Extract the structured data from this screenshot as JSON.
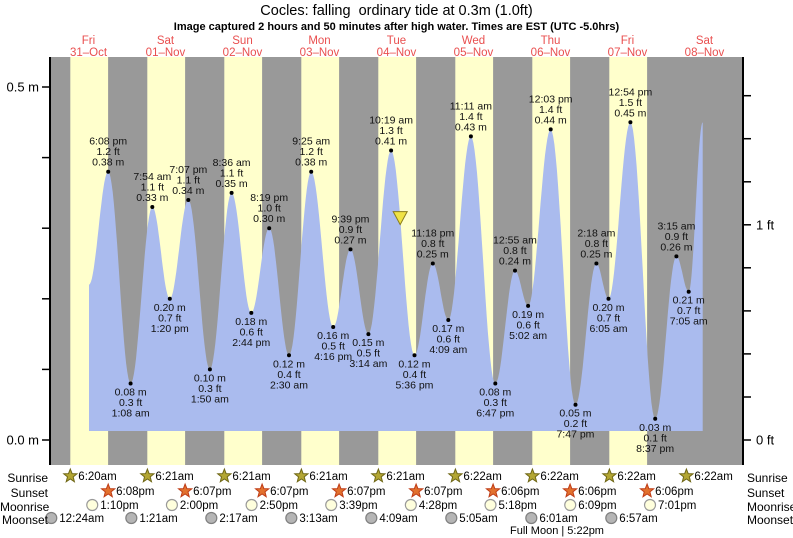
{
  "title": "Cocles: falling  ordinary tide at 0.3m (1.0ft)",
  "subtitle": "Image captured 2 hours and 50 minutes after high water. Times are EST (UTC -5.0hrs)",
  "colors": {
    "day_band": "#ffffcc",
    "night_band": "#999999",
    "tide_fill": "#aabbee",
    "date_label": "#e94f4f",
    "axis": "#000000",
    "point_dot": "#000000",
    "current_marker_fill": "#f0e344",
    "current_marker_stroke": "#8a7d1a",
    "sunrise_star_fill": "#b3a633",
    "sunrise_star_stroke": "#6f6716",
    "sunset_star_fill": "#e2712e",
    "sunset_star_stroke": "#bf3c16",
    "moonrise_circle_fill": "#ffffdd",
    "moonrise_circle_stroke": "#999999",
    "moonset_circle_fill": "#b5b5b5",
    "moonset_circle_stroke": "#7f7f7f"
  },
  "row_labels": {
    "sunrise": "Sunrise",
    "sunset": "Sunset",
    "moonrise": "Moonrise",
    "moonset": "Moonset"
  },
  "chart_data": {
    "type": "area",
    "title": "Cocles: falling  ordinary tide at 0.3m (1.0ft)",
    "ylabel_left_unit": "m",
    "ylabel_right_unit": "ft",
    "ylim_m": [
      0.0,
      0.54
    ],
    "grid": false,
    "x_days": [
      {
        "name": "Fri",
        "date": "31–Oct"
      },
      {
        "name": "Sat",
        "date": "01–Nov"
      },
      {
        "name": "Sun",
        "date": "02–Nov"
      },
      {
        "name": "Mon",
        "date": "03–Nov"
      },
      {
        "name": "Tue",
        "date": "04–Nov"
      },
      {
        "name": "Wed",
        "date": "05–Nov"
      },
      {
        "name": "Thu",
        "date": "06–Nov"
      },
      {
        "name": "Fri",
        "date": "07–Nov"
      },
      {
        "name": "Sat",
        "date": "08–Nov"
      }
    ],
    "y_axis_left": {
      "ticks_m": [
        0,
        0.1,
        0.2,
        0.3,
        0.4,
        0.5
      ],
      "labels": [
        {
          "value_m": 0.5,
          "text": "0.5 m"
        },
        {
          "value_m": 0.0,
          "text": "0.0 m"
        }
      ]
    },
    "y_axis_right": {
      "ticks_ft": [
        0,
        0.2,
        0.4,
        0.6,
        0.8,
        1.0,
        1.2,
        1.4,
        1.6
      ],
      "labels": [
        {
          "value_ft": 1.0,
          "text": "1 ft"
        },
        {
          "value_ft": 0.0,
          "text": "0 ft"
        }
      ]
    },
    "tide_points": [
      {
        "type": "high",
        "day": 0,
        "hour": 18.13,
        "time": "6:08 pm",
        "ft": "1.2 ft",
        "m": "0.38 m",
        "value_m": 0.38
      },
      {
        "type": "low",
        "day": 1,
        "hour": 1.13,
        "time": "1:08 am",
        "ft": "0.3 ft",
        "m": "0.08 m",
        "value_m": 0.08
      },
      {
        "type": "high",
        "day": 1,
        "hour": 7.9,
        "time": "7:54 am",
        "ft": "1.1 ft",
        "m": "0.33 m",
        "value_m": 0.33
      },
      {
        "type": "low",
        "day": 1,
        "hour": 13.33,
        "time": "1:20 pm",
        "ft": "0.7 ft",
        "m": "0.20 m",
        "value_m": 0.2
      },
      {
        "type": "high",
        "day": 1,
        "hour": 19.12,
        "time": "7:07 pm",
        "ft": "1.1 ft",
        "m": "0.34 m",
        "value_m": 0.34
      },
      {
        "type": "low",
        "day": 2,
        "hour": 1.83,
        "time": "1:50 am",
        "ft": "0.3 ft",
        "m": "0.10 m",
        "value_m": 0.1
      },
      {
        "type": "high",
        "day": 2,
        "hour": 8.6,
        "time": "8:36 am",
        "ft": "1.1 ft",
        "m": "0.35 m",
        "value_m": 0.35
      },
      {
        "type": "low",
        "day": 2,
        "hour": 14.73,
        "time": "2:44 pm",
        "ft": "0.6 ft",
        "m": "0.18 m",
        "value_m": 0.18
      },
      {
        "type": "high",
        "day": 2,
        "hour": 20.32,
        "time": "8:19 pm",
        "ft": "1.0 ft",
        "m": "0.30 m",
        "value_m": 0.3
      },
      {
        "type": "low",
        "day": 3,
        "hour": 2.5,
        "time": "2:30 am",
        "ft": "0.4 ft",
        "m": "0.12 m",
        "value_m": 0.12
      },
      {
        "type": "high",
        "day": 3,
        "hour": 9.42,
        "time": "9:25 am",
        "ft": "1.2 ft",
        "m": "0.38 m",
        "value_m": 0.38
      },
      {
        "type": "low",
        "day": 3,
        "hour": 16.27,
        "time": "4:16 pm",
        "ft": "0.5 ft",
        "m": "0.16 m",
        "value_m": 0.16
      },
      {
        "type": "high",
        "day": 3,
        "hour": 21.65,
        "time": "9:39 pm",
        "ft": "0.9 ft",
        "m": "0.27 m",
        "value_m": 0.27
      },
      {
        "type": "low",
        "day": 4,
        "hour": 3.23,
        "time": "3:14 am",
        "ft": "0.5 ft",
        "m": "0.15 m",
        "value_m": 0.15
      },
      {
        "type": "high",
        "day": 4,
        "hour": 10.32,
        "time": "10:19 am",
        "ft": "1.3 ft",
        "m": "0.41 m",
        "value_m": 0.41
      },
      {
        "type": "low",
        "day": 4,
        "hour": 17.6,
        "time": "5:36 pm",
        "ft": "0.4 ft",
        "m": "0.12 m",
        "value_m": 0.12
      },
      {
        "type": "high",
        "day": 4,
        "hour": 23.3,
        "time": "11:18 pm",
        "ft": "0.8 ft",
        "m": "0.25 m",
        "value_m": 0.25
      },
      {
        "type": "low",
        "day": 5,
        "hour": 4.15,
        "time": "4:09 am",
        "ft": "0.6 ft",
        "m": "0.17 m",
        "value_m": 0.17
      },
      {
        "type": "high",
        "day": 5,
        "hour": 11.18,
        "time": "11:11 am",
        "ft": "1.4 ft",
        "m": "0.43 m",
        "value_m": 0.43
      },
      {
        "type": "low",
        "day": 5,
        "hour": 18.78,
        "time": "6:47 pm",
        "ft": "0.3 ft",
        "m": "0.08 m",
        "value_m": 0.08
      },
      {
        "type": "high",
        "day": 6,
        "hour": 0.92,
        "time": "12:55 am",
        "ft": "0.8 ft",
        "m": "0.24 m",
        "value_m": 0.24
      },
      {
        "type": "low",
        "day": 6,
        "hour": 5.03,
        "time": "5:02 am",
        "ft": "0.6 ft",
        "m": "0.19 m",
        "value_m": 0.19
      },
      {
        "type": "high",
        "day": 6,
        "hour": 12.05,
        "time": "12:03 pm",
        "ft": "1.4 ft",
        "m": "0.44 m",
        "value_m": 0.44
      },
      {
        "type": "low",
        "day": 6,
        "hour": 19.78,
        "time": "7:47 pm",
        "ft": "0.2 ft",
        "m": "0.05 m",
        "value_m": 0.05
      },
      {
        "type": "high",
        "day": 7,
        "hour": 2.3,
        "time": "2:18 am",
        "ft": "0.8 ft",
        "m": "0.25 m",
        "value_m": 0.25
      },
      {
        "type": "low",
        "day": 7,
        "hour": 6.08,
        "time": "6:05 am",
        "ft": "0.7 ft",
        "m": "0.20 m",
        "value_m": 0.2
      },
      {
        "type": "high",
        "day": 7,
        "hour": 12.9,
        "time": "12:54 pm",
        "ft": "1.5 ft",
        "m": "0.45 m",
        "value_m": 0.45
      },
      {
        "type": "low",
        "day": 7,
        "hour": 20.62,
        "time": "8:37 pm",
        "ft": "0.1 ft",
        "m": "0.03 m",
        "value_m": 0.03
      },
      {
        "type": "high",
        "day": 8,
        "hour": 3.25,
        "time": "3:15 am",
        "ft": "0.9 ft",
        "m": "0.26 m",
        "value_m": 0.26
      },
      {
        "type": "low",
        "day": 8,
        "hour": 7.08,
        "time": "7:05 am",
        "ft": "0.7 ft",
        "m": "0.21 m",
        "value_m": 0.21
      }
    ],
    "curve_edges": {
      "start": {
        "day": 0,
        "hour": 12.15,
        "value_m": 0.22
      },
      "end": {
        "day": 8,
        "hour": 11.45,
        "value_m": 0.45
      }
    },
    "current_time_marker": {
      "day": 4,
      "hour": 13.15,
      "value_m": 0.315
    },
    "daylight": {
      "sunrise_hour": 6.33,
      "sunset_hour": 18.12
    },
    "astro_rows": [
      {
        "key": "sunrise",
        "label": "Sunrise",
        "icon": "sunrise-star-icon",
        "entries": [
          {
            "day": 0,
            "hour": 6.33,
            "time": "6:20am"
          },
          {
            "day": 1,
            "hour": 6.35,
            "time": "6:21am"
          },
          {
            "day": 2,
            "hour": 6.35,
            "time": "6:21am"
          },
          {
            "day": 3,
            "hour": 6.35,
            "time": "6:21am"
          },
          {
            "day": 4,
            "hour": 6.35,
            "time": "6:21am"
          },
          {
            "day": 5,
            "hour": 6.37,
            "time": "6:22am"
          },
          {
            "day": 6,
            "hour": 6.37,
            "time": "6:22am"
          },
          {
            "day": 7,
            "hour": 6.37,
            "time": "6:22am"
          },
          {
            "day": 8,
            "hour": 6.37,
            "time": "6:22am"
          }
        ]
      },
      {
        "key": "sunset",
        "label": "Sunset",
        "icon": "sunset-star-icon",
        "entries": [
          {
            "day": 0,
            "hour": 18.13,
            "time": "6:08pm"
          },
          {
            "day": 1,
            "hour": 18.12,
            "time": "6:07pm"
          },
          {
            "day": 2,
            "hour": 18.12,
            "time": "6:07pm"
          },
          {
            "day": 3,
            "hour": 18.12,
            "time": "6:07pm"
          },
          {
            "day": 4,
            "hour": 18.12,
            "time": "6:07pm"
          },
          {
            "day": 5,
            "hour": 18.1,
            "time": "6:06pm"
          },
          {
            "day": 6,
            "hour": 18.1,
            "time": "6:06pm"
          },
          {
            "day": 7,
            "hour": 18.1,
            "time": "6:06pm"
          }
        ]
      },
      {
        "key": "moonrise",
        "label": "Moonrise",
        "icon": "moonrise-icon",
        "entries": [
          {
            "day": 0,
            "hour": 13.17,
            "time": "1:10pm"
          },
          {
            "day": 1,
            "hour": 14.0,
            "time": "2:00pm"
          },
          {
            "day": 2,
            "hour": 14.83,
            "time": "2:50pm"
          },
          {
            "day": 3,
            "hour": 15.65,
            "time": "3:39pm"
          },
          {
            "day": 4,
            "hour": 16.47,
            "time": "4:28pm"
          },
          {
            "day": 5,
            "hour": 17.3,
            "time": "5:18pm"
          },
          {
            "day": 6,
            "hour": 18.15,
            "time": "6:09pm"
          },
          {
            "day": 7,
            "hour": 19.02,
            "time": "7:01pm"
          }
        ]
      },
      {
        "key": "moonset",
        "label": "Moonset",
        "icon": "moonset-icon",
        "entries": [
          {
            "day": 0,
            "hour": 0.4,
            "time": "12:24am"
          },
          {
            "day": 1,
            "hour": 1.35,
            "time": "1:21am"
          },
          {
            "day": 2,
            "hour": 2.28,
            "time": "2:17am"
          },
          {
            "day": 3,
            "hour": 3.22,
            "time": "3:13am"
          },
          {
            "day": 4,
            "hour": 4.15,
            "time": "4:09am"
          },
          {
            "day": 5,
            "hour": 5.08,
            "time": "5:05am"
          },
          {
            "day": 6,
            "hour": 6.02,
            "time": "6:01am"
          },
          {
            "day": 7,
            "hour": 6.95,
            "time": "6:57am"
          }
        ]
      }
    ],
    "moon_note": "Full Moon | 5:22pm"
  }
}
